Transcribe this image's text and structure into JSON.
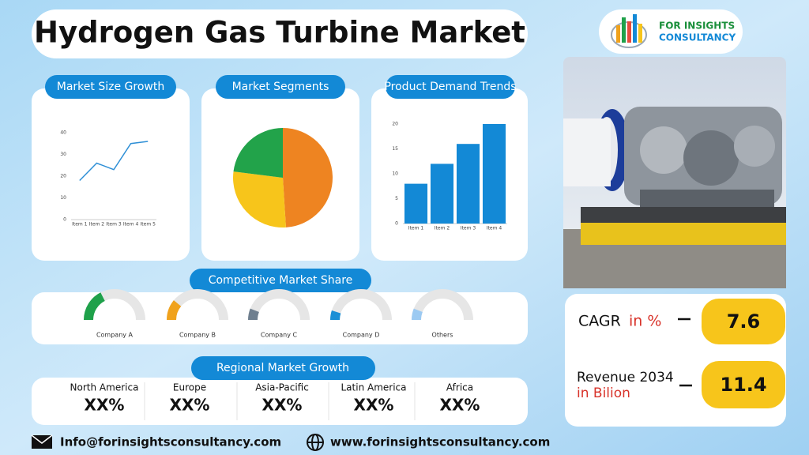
{
  "title": "Hydrogen Gas Turbine Market",
  "logo": {
    "line1": "FOR INSIGHTS",
    "line2": "CONSULTANCY"
  },
  "market_size_growth": {
    "label": "Market Size Growth",
    "chart": {
      "type": "line",
      "categories": [
        "Item 1",
        "Item 2",
        "Item 3",
        "Item 4",
        "Item 5"
      ],
      "values": [
        18,
        26,
        23,
        35,
        36
      ],
      "ylim": [
        0,
        40
      ],
      "yticks": [
        0,
        10,
        20,
        30,
        40
      ],
      "color": "#2e8fd6"
    }
  },
  "market_segments": {
    "label": "Market Segments",
    "chart": {
      "type": "pie",
      "values": [
        49,
        28,
        23
      ],
      "colors": [
        "#ee8421",
        "#f7c51b",
        "#22a34a"
      ]
    }
  },
  "product_demand_trends": {
    "label": "Product Demand Trends",
    "chart": {
      "type": "bar",
      "categories": [
        "Item 1",
        "Item 2",
        "Item 3",
        "Item 4"
      ],
      "values": [
        8,
        12,
        16,
        20
      ],
      "ylim": [
        0,
        20
      ],
      "yticks": [
        0,
        5,
        10,
        15,
        20
      ],
      "color": "#1389d6"
    }
  },
  "competitive_market_share": {
    "label": "Competitive Market Share",
    "chart": {
      "type": "gauge",
      "categories": [
        "Company A",
        "Company B",
        "Company C",
        "Company D",
        "Others"
      ],
      "values": [
        35,
        22,
        12,
        10,
        12
      ],
      "colors": [
        "#1fa14a",
        "#f0a21d",
        "#6f7f8f",
        "#1a8fd6",
        "#9ccaf2"
      ]
    }
  },
  "regional_market_growth": {
    "label": "Regional Market Growth",
    "regions": [
      {
        "name": "North America",
        "value": "XX%"
      },
      {
        "name": "Europe",
        "value": "XX%"
      },
      {
        "name": "Asia-Pacific",
        "value": "XX%"
      },
      {
        "name": "Latin America",
        "value": "XX%"
      },
      {
        "name": "Africa",
        "value": "XX%"
      }
    ]
  },
  "cagr": {
    "label": "CAGR",
    "unit": "in %",
    "value": 7.6
  },
  "revenue": {
    "label": "Revenue 2034",
    "unit": "in Bilion",
    "value": 11.4
  },
  "contact": {
    "email": "Info@forinsightsconsultancy.com",
    "website": "www.forinsightsconsultancy.com"
  }
}
